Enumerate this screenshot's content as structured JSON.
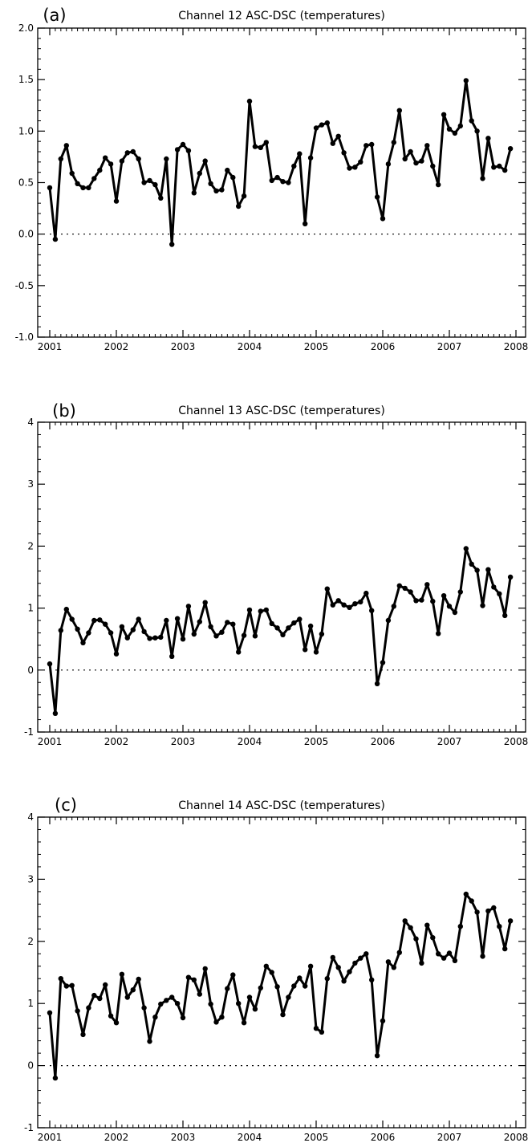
{
  "chart_data": [
    {
      "type": "line",
      "panel_label": "(a)",
      "title": "Channel 12 ASC-DSC (temperatures)",
      "xlabel": "",
      "ylabel": "",
      "xlim": [
        2001,
        2008
      ],
      "ylim": [
        -1.0,
        2.0
      ],
      "xticks": [
        "2001",
        "2002",
        "2003",
        "2004",
        "2005",
        "2006",
        "2007",
        "2008"
      ],
      "yticks": [
        "-1.0",
        "-0.5",
        "0.0",
        "0.5",
        "1.0",
        "1.5",
        "2.0"
      ],
      "zero_line": "dotted",
      "grid": false,
      "x": [
        "2001-01",
        "2001-02",
        "2001-03",
        "2001-04",
        "2001-05",
        "2001-06",
        "2001-07",
        "2001-08",
        "2001-09",
        "2001-10",
        "2001-11",
        "2001-12",
        "2002-01",
        "2002-02",
        "2002-03",
        "2002-04",
        "2002-05",
        "2002-06",
        "2002-07",
        "2002-08",
        "2002-09",
        "2002-10",
        "2002-11",
        "2002-12",
        "2003-01",
        "2003-02",
        "2003-03",
        "2003-04",
        "2003-05",
        "2003-06",
        "2003-07",
        "2003-08",
        "2003-09",
        "2003-10",
        "2003-11",
        "2003-12",
        "2004-01",
        "2004-02",
        "2004-03",
        "2004-04",
        "2004-05",
        "2004-06",
        "2004-07",
        "2004-08",
        "2004-09",
        "2004-10",
        "2004-11",
        "2004-12",
        "2005-01",
        "2005-02",
        "2005-03",
        "2005-04",
        "2005-05",
        "2005-06",
        "2005-07",
        "2005-08",
        "2005-09",
        "2005-10",
        "2005-11",
        "2005-12",
        "2006-01",
        "2006-02",
        "2006-03",
        "2006-04",
        "2006-05",
        "2006-06",
        "2006-07",
        "2006-08",
        "2006-09",
        "2006-10",
        "2006-11",
        "2006-12",
        "2007-01",
        "2007-02",
        "2007-03",
        "2007-04",
        "2007-05",
        "2007-06",
        "2007-07",
        "2007-08",
        "2007-09",
        "2007-10",
        "2007-11",
        "2007-12"
      ],
      "values": [
        0.45,
        -0.05,
        0.73,
        0.86,
        0.59,
        0.49,
        0.45,
        0.45,
        0.54,
        0.62,
        0.74,
        0.68,
        0.32,
        0.71,
        0.79,
        0.8,
        0.73,
        0.5,
        0.52,
        0.48,
        0.35,
        0.73,
        -0.1,
        0.82,
        0.87,
        0.81,
        0.4,
        0.59,
        0.71,
        0.49,
        0.42,
        0.43,
        0.62,
        0.55,
        0.27,
        0.37,
        1.29,
        0.85,
        0.84,
        0.89,
        0.52,
        0.55,
        0.51,
        0.5,
        0.66,
        0.78,
        0.1,
        0.74,
        1.03,
        1.06,
        1.08,
        0.88,
        0.95,
        0.79,
        0.64,
        0.65,
        0.7,
        0.86,
        0.87,
        0.36,
        0.15,
        0.68,
        0.89,
        1.2,
        0.73,
        0.8,
        0.69,
        0.71,
        0.86,
        0.66,
        0.48,
        1.16,
        1.02,
        0.98,
        1.05,
        1.49,
        1.1,
        1.0,
        0.54,
        0.93,
        0.65,
        0.66,
        0.62,
        0.83
      ]
    },
    {
      "type": "line",
      "panel_label": "(b)",
      "title": "Channel 13 ASC-DSC (temperatures)",
      "xlabel": "",
      "ylabel": "",
      "xlim": [
        2001,
        2008
      ],
      "ylim": [
        -1,
        4
      ],
      "xticks": [
        "2001",
        "2002",
        "2003",
        "2004",
        "2005",
        "2006",
        "2007",
        "2008"
      ],
      "yticks": [
        "-1",
        "0",
        "1",
        "2",
        "3",
        "4"
      ],
      "zero_line": "dotted",
      "grid": false,
      "x": [
        "2001-01",
        "2001-02",
        "2001-03",
        "2001-04",
        "2001-05",
        "2001-06",
        "2001-07",
        "2001-08",
        "2001-09",
        "2001-10",
        "2001-11",
        "2001-12",
        "2002-01",
        "2002-02",
        "2002-03",
        "2002-04",
        "2002-05",
        "2002-06",
        "2002-07",
        "2002-08",
        "2002-09",
        "2002-10",
        "2002-11",
        "2002-12",
        "2003-01",
        "2003-02",
        "2003-03",
        "2003-04",
        "2003-05",
        "2003-06",
        "2003-07",
        "2003-08",
        "2003-09",
        "2003-10",
        "2003-11",
        "2003-12",
        "2004-01",
        "2004-02",
        "2004-03",
        "2004-04",
        "2004-05",
        "2004-06",
        "2004-07",
        "2004-08",
        "2004-09",
        "2004-10",
        "2004-11",
        "2004-12",
        "2005-01",
        "2005-02",
        "2005-03",
        "2005-04",
        "2005-05",
        "2005-06",
        "2005-07",
        "2005-08",
        "2005-09",
        "2005-10",
        "2005-11",
        "2005-12",
        "2006-01",
        "2006-02",
        "2006-03",
        "2006-04",
        "2006-05",
        "2006-06",
        "2006-07",
        "2006-08",
        "2006-09",
        "2006-10",
        "2006-11",
        "2006-12",
        "2007-01",
        "2007-02",
        "2007-03",
        "2007-04",
        "2007-05",
        "2007-06",
        "2007-07",
        "2007-08",
        "2007-09",
        "2007-10",
        "2007-11",
        "2007-12"
      ],
      "values": [
        0.1,
        -0.7,
        0.64,
        0.98,
        0.82,
        0.66,
        0.44,
        0.6,
        0.8,
        0.81,
        0.74,
        0.6,
        0.26,
        0.7,
        0.52,
        0.65,
        0.82,
        0.62,
        0.51,
        0.52,
        0.53,
        0.8,
        0.22,
        0.83,
        0.5,
        1.03,
        0.58,
        0.78,
        1.09,
        0.7,
        0.55,
        0.61,
        0.77,
        0.74,
        0.29,
        0.56,
        0.97,
        0.55,
        0.95,
        0.97,
        0.75,
        0.68,
        0.57,
        0.68,
        0.76,
        0.82,
        0.33,
        0.71,
        0.29,
        0.58,
        1.31,
        1.05,
        1.12,
        1.05,
        1.01,
        1.07,
        1.1,
        1.24,
        0.96,
        -0.22,
        0.12,
        0.8,
        1.03,
        1.36,
        1.32,
        1.26,
        1.12,
        1.13,
        1.38,
        1.11,
        0.59,
        1.2,
        1.03,
        0.93,
        1.26,
        1.96,
        1.71,
        1.61,
        1.04,
        1.62,
        1.34,
        1.23,
        0.88,
        1.5
      ]
    },
    {
      "type": "line",
      "panel_label": "(c)",
      "title": "Channel 14 ASC-DSC (temperatures)",
      "xlabel": "",
      "ylabel": "",
      "xlim": [
        2001,
        2008
      ],
      "ylim": [
        -1,
        4
      ],
      "xticks": [
        "2001",
        "2002",
        "2003",
        "2004",
        "2005",
        "2006",
        "2007",
        "2008"
      ],
      "yticks": [
        "-1",
        "0",
        "1",
        "2",
        "3",
        "4"
      ],
      "zero_line": "dotted",
      "grid": false,
      "x": [
        "2001-01",
        "2001-02",
        "2001-03",
        "2001-04",
        "2001-05",
        "2001-06",
        "2001-07",
        "2001-08",
        "2001-09",
        "2001-10",
        "2001-11",
        "2001-12",
        "2002-01",
        "2002-02",
        "2002-03",
        "2002-04",
        "2002-05",
        "2002-06",
        "2002-07",
        "2002-08",
        "2002-09",
        "2002-10",
        "2002-11",
        "2002-12",
        "2003-01",
        "2003-02",
        "2003-03",
        "2003-04",
        "2003-05",
        "2003-06",
        "2003-07",
        "2003-08",
        "2003-09",
        "2003-10",
        "2003-11",
        "2003-12",
        "2004-01",
        "2004-02",
        "2004-03",
        "2004-04",
        "2004-05",
        "2004-06",
        "2004-07",
        "2004-08",
        "2004-09",
        "2004-10",
        "2004-11",
        "2004-12",
        "2005-01",
        "2005-02",
        "2005-03",
        "2005-04",
        "2005-05",
        "2005-06",
        "2005-07",
        "2005-08",
        "2005-09",
        "2005-10",
        "2005-11",
        "2005-12",
        "2006-01",
        "2006-02",
        "2006-03",
        "2006-04",
        "2006-05",
        "2006-06",
        "2006-07",
        "2006-08",
        "2006-09",
        "2006-10",
        "2006-11",
        "2006-12",
        "2007-01",
        "2007-02",
        "2007-03",
        "2007-04",
        "2007-05",
        "2007-06",
        "2007-07",
        "2007-08",
        "2007-09",
        "2007-10",
        "2007-11",
        "2007-12"
      ],
      "values": [
        0.85,
        -0.2,
        1.4,
        1.28,
        1.29,
        0.88,
        0.5,
        0.93,
        1.13,
        1.08,
        1.3,
        0.8,
        0.69,
        1.47,
        1.1,
        1.22,
        1.39,
        0.93,
        0.39,
        0.78,
        0.99,
        1.05,
        1.1,
        1.0,
        0.77,
        1.42,
        1.38,
        1.15,
        1.56,
        0.99,
        0.7,
        0.78,
        1.24,
        1.46,
        1.0,
        0.69,
        1.1,
        0.91,
        1.25,
        1.6,
        1.5,
        1.27,
        0.82,
        1.1,
        1.28,
        1.41,
        1.28,
        1.6,
        0.6,
        0.54,
        1.4,
        1.74,
        1.58,
        1.36,
        1.51,
        1.65,
        1.73,
        1.8,
        1.38,
        0.16,
        0.72,
        1.67,
        1.58,
        1.82,
        2.33,
        2.22,
        2.04,
        1.65,
        2.26,
        2.06,
        1.8,
        1.73,
        1.81,
        1.69,
        2.24,
        2.76,
        2.65,
        2.47,
        1.76,
        2.49,
        2.54,
        2.24,
        1.88,
        2.33
      ]
    }
  ]
}
